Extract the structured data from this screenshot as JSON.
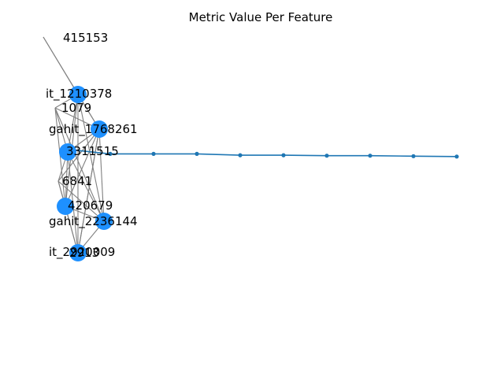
{
  "chart_data": {
    "type": "line",
    "title": "Metric Value Per Feature",
    "xlabel": "",
    "ylabel": "",
    "grid": false,
    "line_color": "#1f77b4",
    "series": [
      {
        "x": [
          0,
          1,
          2,
          3,
          4,
          5,
          6,
          7,
          8,
          9
        ],
        "values": [
          0.1,
          0.0,
          0.0,
          0.0,
          -0.03,
          -0.03,
          -0.04,
          -0.04,
          -0.05,
          -0.06
        ]
      }
    ],
    "ylim": [
      -4.0,
      2.4
    ],
    "xlim": [
      0,
      9
    ]
  },
  "graph_overlay": {
    "node_color": "#1e90ff",
    "edge_color": "#808080",
    "nodes": [
      {
        "label": "415153"
      },
      {
        "label": "it_1210378"
      },
      {
        "label": "1079"
      },
      {
        "label": "gahit_1768261"
      },
      {
        "label": "3311515"
      },
      {
        "label": "6841"
      },
      {
        "label": "420679"
      },
      {
        "label": "gahit_2236144"
      },
      {
        "label": "it_2920009"
      },
      {
        "label": "2913"
      }
    ]
  }
}
